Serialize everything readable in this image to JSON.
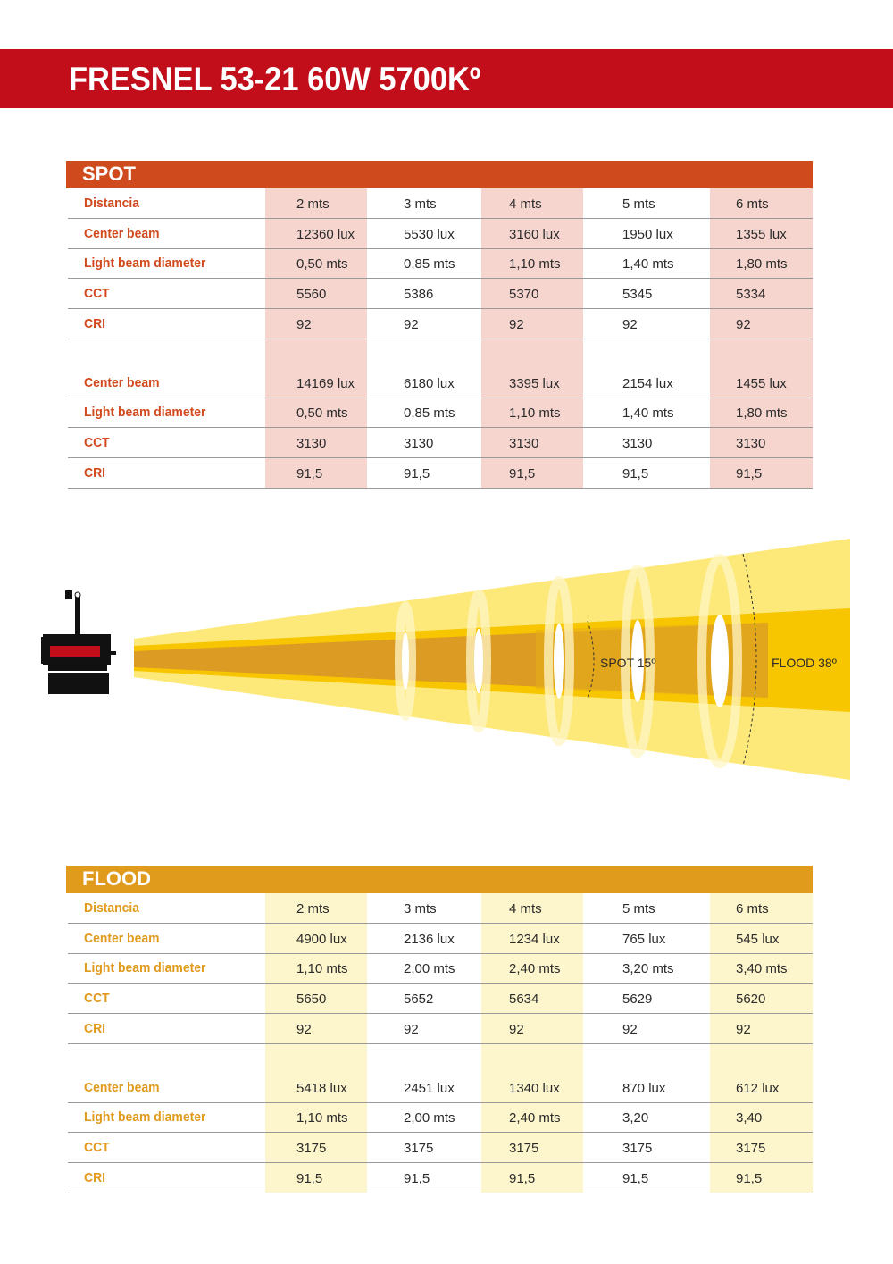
{
  "title": "FRESNEL 53-21 60W 5700Kº",
  "spot": {
    "header": "SPOT",
    "table1": [
      {
        "label": "Distancia",
        "values": [
          "2 mts",
          "3 mts",
          "4 mts",
          "5 mts",
          "6 mts"
        ]
      },
      {
        "label": "Center beam",
        "values": [
          "12360 lux",
          "5530 lux",
          "3160 lux",
          "1950 lux",
          "1355 lux"
        ]
      },
      {
        "label": "Light beam diameter",
        "values": [
          "0,50 mts",
          "0,85 mts",
          "1,10 mts",
          "1,40 mts",
          "1,80 mts"
        ]
      },
      {
        "label": "CCT",
        "values": [
          "5560",
          "5386",
          "5370",
          "5345",
          "5334"
        ]
      },
      {
        "label": "CRI",
        "values": [
          "92",
          "92",
          "92",
          "92",
          "92"
        ]
      }
    ],
    "table2": [
      {
        "label": "Center beam",
        "values": [
          "14169 lux",
          "6180 lux",
          "3395 lux",
          "2154 lux",
          "1455 lux"
        ]
      },
      {
        "label": "Light beam diameter",
        "values": [
          "0,50 mts",
          "0,85 mts",
          "1,10 mts",
          "1,40 mts",
          "1,80 mts"
        ]
      },
      {
        "label": "CCT",
        "values": [
          "3130",
          "3130",
          "3130",
          "3130",
          "3130"
        ]
      },
      {
        "label": "CRI",
        "values": [
          "91,5",
          "91,5",
          "91,5",
          "91,5",
          "91,5"
        ]
      }
    ]
  },
  "diagram": {
    "spot_label": "SPOT 15º",
    "flood_label": "FLOOD 38º",
    "colors": {
      "outer": "#fde97a",
      "inner": "#f7c600",
      "core": "#dc9b22",
      "spot_body": "#c20e1a"
    }
  },
  "flood": {
    "header": "FLOOD",
    "table1": [
      {
        "label": "Distancia",
        "values": [
          "2 mts",
          "3 mts",
          "4 mts",
          "5 mts",
          "6 mts"
        ]
      },
      {
        "label": "Center beam",
        "values": [
          "4900 lux",
          "2136 lux",
          "1234 lux",
          "765 lux",
          "545 lux"
        ]
      },
      {
        "label": "Light beam diameter",
        "values": [
          "1,10 mts",
          "2,00 mts",
          "2,40 mts",
          "3,20 mts",
          "3,40 mts"
        ]
      },
      {
        "label": "CCT",
        "values": [
          "5650",
          "5652",
          "5634",
          "5629",
          "5620"
        ]
      },
      {
        "label": "CRI",
        "values": [
          "92",
          "92",
          "92",
          "92",
          "92"
        ]
      }
    ],
    "table2": [
      {
        "label": "Center beam",
        "values": [
          "5418 lux",
          "2451 lux",
          "1340 lux",
          "870 lux",
          "612 lux"
        ]
      },
      {
        "label": "Light beam diameter",
        "values": [
          "1,10 mts",
          "2,00 mts",
          "2,40 mts",
          "3,20",
          "3,40"
        ]
      },
      {
        "label": "CCT",
        "values": [
          "3175",
          "3175",
          "3175",
          "3175",
          "3175"
        ]
      },
      {
        "label": "CRI",
        "values": [
          "91,5",
          "91,5",
          "91,5",
          "91,5",
          "91,5"
        ]
      }
    ]
  }
}
